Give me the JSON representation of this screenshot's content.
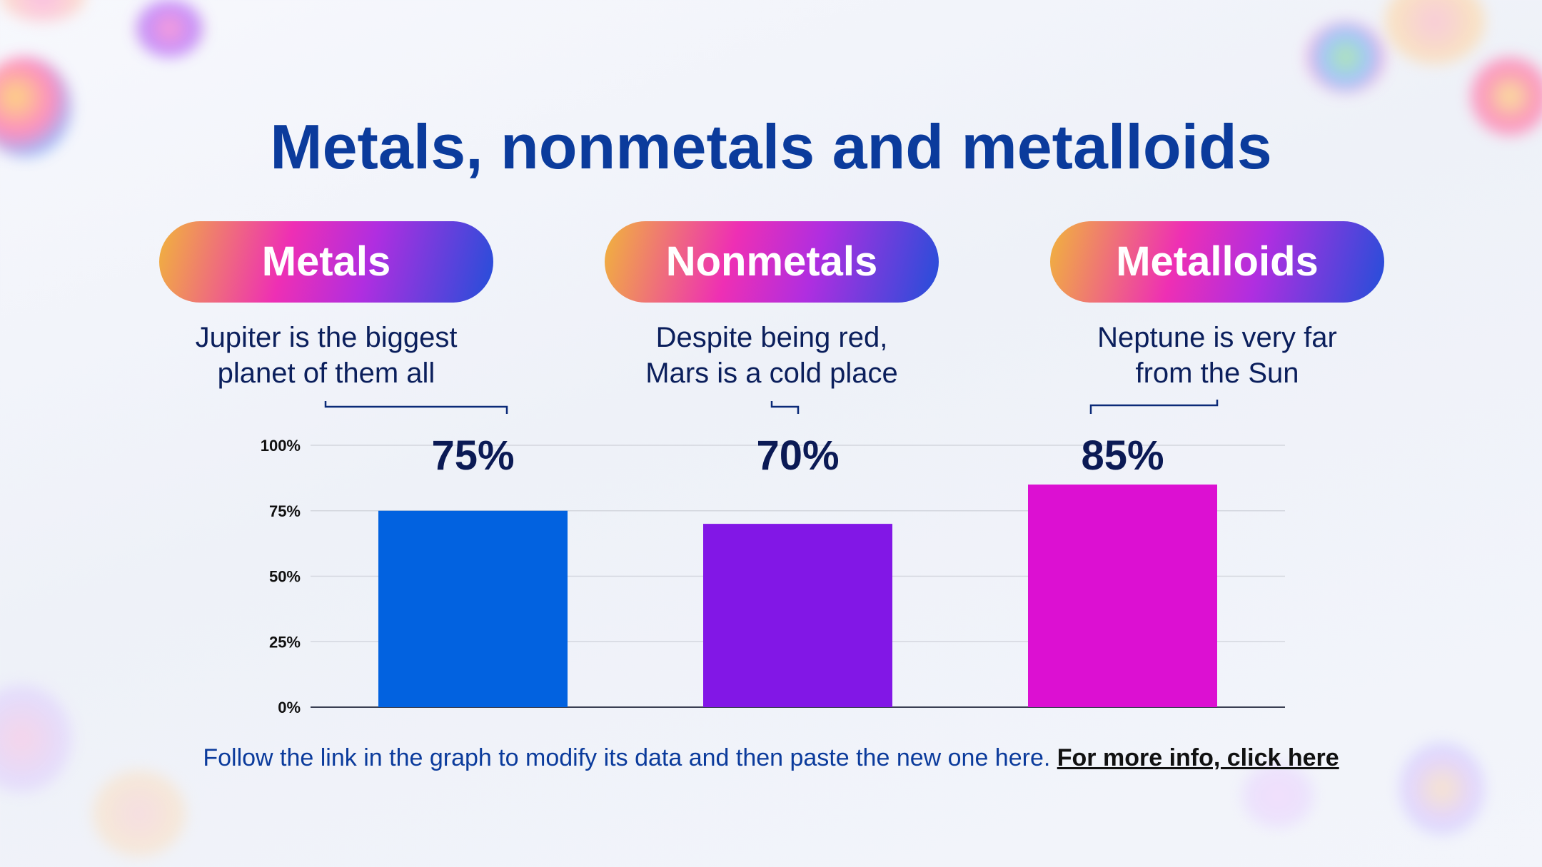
{
  "slide": {
    "title": "Metals, nonmetals and metalloids",
    "categories": [
      {
        "label": "Metals",
        "description_line1": "Jupiter is the biggest",
        "description_line2": "planet of them all"
      },
      {
        "label": "Nonmetals",
        "description_line1": "Despite being red,",
        "description_line2": "Mars is a cold place"
      },
      {
        "label": "Metalloids",
        "description_line1": "Neptune is very far",
        "description_line2": "from the Sun"
      }
    ],
    "footer": {
      "text": "Follow the link in the graph to modify its data and then paste the new one here. ",
      "link": "For more info, click here"
    }
  },
  "chart_data": {
    "type": "bar",
    "categories": [
      "Metals",
      "Nonmetals",
      "Metalloids"
    ],
    "values": [
      75,
      70,
      85
    ],
    "value_labels": [
      "75%",
      "70%",
      "85%"
    ],
    "colors": [
      "#0262e0",
      "#8217e6",
      "#dc10d2"
    ],
    "y_ticks": [
      "0%",
      "25%",
      "50%",
      "75%",
      "100%"
    ],
    "ylim": [
      0,
      100
    ],
    "grid": true,
    "title": "",
    "xlabel": "",
    "ylabel": ""
  }
}
